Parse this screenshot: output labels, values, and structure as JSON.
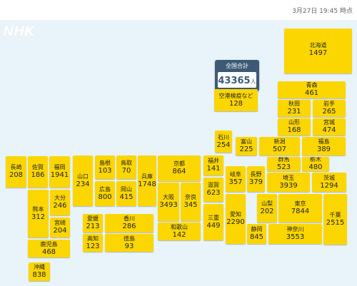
{
  "header": {
    "timestamp": "3月27日 19:45 時点"
  },
  "logo": "NHK",
  "total": {
    "label": "全国合計",
    "value": "43365",
    "unit": "人"
  },
  "prefectures": {
    "hokkaido": {
      "name": "北海道",
      "count": "1497"
    },
    "airport": {
      "name": "空港検疫など",
      "count": "128"
    },
    "aomori": {
      "name": "青森",
      "count": "461"
    },
    "akita": {
      "name": "秋田",
      "count": "231"
    },
    "iwate": {
      "name": "岩手",
      "count": "265"
    },
    "yamagata": {
      "name": "山形",
      "count": "168"
    },
    "miyagi": {
      "name": "宮城",
      "count": "474"
    },
    "ishikawa": {
      "name": "石川",
      "count": "254"
    },
    "toyama": {
      "name": "富山",
      "count": "225"
    },
    "niigata": {
      "name": "新潟",
      "count": "507"
    },
    "fukushima": {
      "name": "福島",
      "count": "389"
    },
    "gunma": {
      "name": "群馬",
      "count": "523"
    },
    "tochigi": {
      "name": "栃木",
      "count": "480"
    },
    "nagasaki": {
      "name": "長崎",
      "count": "208"
    },
    "saga": {
      "name": "佐賀",
      "count": "186"
    },
    "fukuoka": {
      "name": "福岡",
      "count": "1941"
    },
    "yamaguchi": {
      "name": "山口",
      "count": "234"
    },
    "shimane": {
      "name": "島根",
      "count": "103"
    },
    "tottori": {
      "name": "鳥取",
      "count": "70"
    },
    "hiroshima": {
      "name": "広島",
      "count": "800"
    },
    "okayama": {
      "name": "岡山",
      "count": "415"
    },
    "hyogo": {
      "name": "兵庫",
      "count": "1748"
    },
    "kyoto": {
      "name": "京都",
      "count": "864"
    },
    "fukui": {
      "name": "福井",
      "count": "141"
    },
    "shiga": {
      "name": "滋賀",
      "count": "623"
    },
    "gifu": {
      "name": "岐阜",
      "count": "357"
    },
    "nagano": {
      "name": "長野",
      "count": "379"
    },
    "saitama": {
      "name": "埼玉",
      "count": "3939"
    },
    "ibaraki": {
      "name": "茨城",
      "count": "1294"
    },
    "osaka": {
      "name": "大阪",
      "count": "3493"
    },
    "nara": {
      "name": "奈良",
      "count": "345"
    },
    "mie": {
      "name": "三重",
      "count": "449"
    },
    "aichi": {
      "name": "愛知",
      "count": "2290"
    },
    "yamanashi": {
      "name": "山梨",
      "count": "202"
    },
    "tokyo": {
      "name": "東京",
      "count": "7844"
    },
    "chiba": {
      "name": "千葉",
      "count": "2515"
    },
    "wakayama": {
      "name": "和歌山",
      "count": "142"
    },
    "kumamoto": {
      "name": "熊本",
      "count": "312"
    },
    "oita": {
      "name": "大分",
      "count": "246"
    },
    "miyazaki": {
      "name": "宮崎",
      "count": "204"
    },
    "ehime": {
      "name": "愛媛",
      "count": "213"
    },
    "kagawa": {
      "name": "香川",
      "count": "286"
    },
    "kochi": {
      "name": "高知",
      "count": "123"
    },
    "tokushima": {
      "name": "徳島",
      "count": "93"
    },
    "shizuoka": {
      "name": "静岡",
      "count": "845"
    },
    "kanagawa": {
      "name": "神奈川",
      "count": "3553"
    },
    "kagoshima": {
      "name": "鹿児島",
      "count": "468"
    },
    "okinawa": {
      "name": "沖縄",
      "count": "838"
    }
  }
}
